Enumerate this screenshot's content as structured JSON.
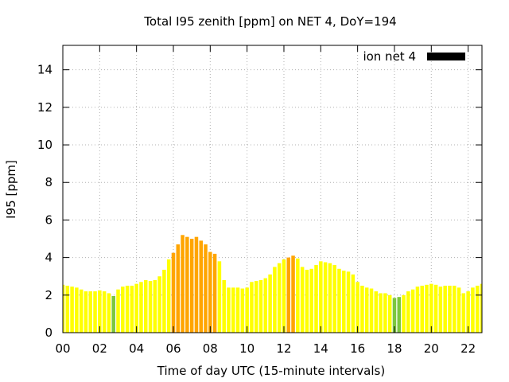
{
  "chart_data": {
    "type": "bar",
    "title": "Total I95 zenith [ppm] on NET 4, DoY=194",
    "xlabel": "Time of day UTC (15-minute intervals)",
    "ylabel": "I95 [ppm]",
    "xlim": [
      0,
      22.75
    ],
    "ylim": [
      0,
      15.3
    ],
    "x_ticks": [
      "00",
      "02",
      "04",
      "06",
      "08",
      "10",
      "12",
      "14",
      "16",
      "18",
      "20",
      "22"
    ],
    "y_ticks": [
      "0",
      "2",
      "4",
      "6",
      "8",
      "10",
      "12",
      "14"
    ],
    "grid": true,
    "legend": {
      "label": "ion net 4",
      "position": "top-right",
      "color": "#000000"
    },
    "interval_hours": 0.25,
    "colors": {
      "yellow": "#ffff00",
      "orange": "#ffa500",
      "green": "#7cc63e"
    },
    "values": [
      2.55,
      2.5,
      2.45,
      2.4,
      2.3,
      2.2,
      2.2,
      2.2,
      2.25,
      2.2,
      2.1,
      1.95,
      2.3,
      2.45,
      2.5,
      2.5,
      2.6,
      2.7,
      2.8,
      2.75,
      2.8,
      3.0,
      3.35,
      3.9,
      4.25,
      4.7,
      5.2,
      5.1,
      5.0,
      5.1,
      4.9,
      4.7,
      4.3,
      4.2,
      3.8,
      2.8,
      2.4,
      2.4,
      2.4,
      2.35,
      2.4,
      2.7,
      2.75,
      2.8,
      2.9,
      3.1,
      3.5,
      3.7,
      3.9,
      4.0,
      4.1,
      3.95,
      3.5,
      3.35,
      3.4,
      3.6,
      3.8,
      3.75,
      3.7,
      3.6,
      3.4,
      3.3,
      3.25,
      3.1,
      2.7,
      2.5,
      2.4,
      2.35,
      2.2,
      2.1,
      2.1,
      2.0,
      1.85,
      1.9,
      2.0,
      2.2,
      2.3,
      2.45,
      2.5,
      2.55,
      2.6,
      2.55,
      2.45,
      2.5,
      2.5,
      2.5,
      2.4,
      2.1,
      2.2,
      2.4,
      2.5,
      2.6
    ],
    "bar_colors": [
      "yellow",
      "yellow",
      "yellow",
      "yellow",
      "yellow",
      "yellow",
      "yellow",
      "yellow",
      "yellow",
      "yellow",
      "yellow",
      "green",
      "yellow",
      "yellow",
      "yellow",
      "yellow",
      "yellow",
      "yellow",
      "yellow",
      "yellow",
      "yellow",
      "yellow",
      "yellow",
      "yellow",
      "orange",
      "orange",
      "orange",
      "orange",
      "orange",
      "orange",
      "orange",
      "orange",
      "orange",
      "orange",
      "yellow",
      "yellow",
      "yellow",
      "yellow",
      "yellow",
      "yellow",
      "yellow",
      "yellow",
      "yellow",
      "yellow",
      "yellow",
      "yellow",
      "yellow",
      "yellow",
      "yellow",
      "orange",
      "orange",
      "yellow",
      "yellow",
      "yellow",
      "yellow",
      "yellow",
      "yellow",
      "yellow",
      "yellow",
      "yellow",
      "yellow",
      "yellow",
      "yellow",
      "yellow",
      "yellow",
      "yellow",
      "yellow",
      "yellow",
      "yellow",
      "yellow",
      "yellow",
      "yellow",
      "green",
      "green",
      "yellow",
      "yellow",
      "yellow",
      "yellow",
      "yellow",
      "yellow",
      "yellow",
      "yellow",
      "yellow",
      "yellow",
      "yellow",
      "yellow",
      "yellow",
      "yellow",
      "yellow",
      "yellow",
      "yellow",
      "yellow"
    ]
  }
}
